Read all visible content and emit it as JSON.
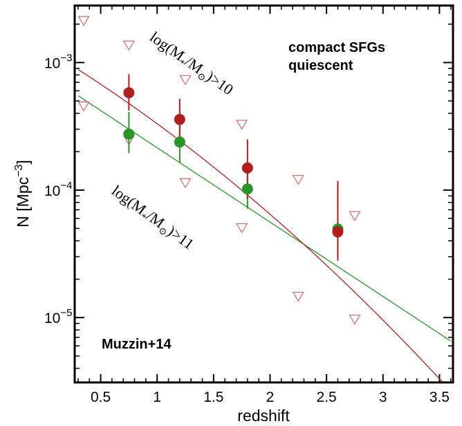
{
  "chart_data": {
    "type": "scatter",
    "xlabel": "redshift",
    "ylabel": "N [Mpc",
    "ylabel_exponent": "−3",
    "ylabel_close": "]",
    "xlim": [
      0.27,
      3.62
    ],
    "ylim": [
      3.1e-06,
      0.0028
    ],
    "yscale": "log",
    "x_ticks": [
      0.5,
      1.0,
      1.5,
      2.0,
      2.5,
      3.0,
      3.5
    ],
    "x_tick_labels": [
      "0.5",
      "1",
      "1.5",
      "2",
      "2.5",
      "3",
      "3.5"
    ],
    "y_ticks": [
      1e-05,
      0.0001,
      0.001
    ],
    "y_tick_labels": [
      {
        "mantissa": "10",
        "exponent": "−5"
      },
      {
        "mantissa": "10",
        "exponent": "−4"
      },
      {
        "mantissa": "10",
        "exponent": "−3"
      }
    ],
    "legend_position": "top-right",
    "legend": [
      {
        "label": "compact SFGs",
        "color": "#2a9428"
      },
      {
        "label": "quiescent",
        "color": "#b01e1e"
      }
    ],
    "series": [
      {
        "name": "compact SFGs",
        "color": "#2a9428",
        "points": [
          {
            "x": 0.75,
            "y": 0.000275,
            "ylo": 0.000195,
            "yhi": 0.00041
          },
          {
            "x": 1.2,
            "y": 0.000238,
            "ylo": 0.000165,
            "yhi": 0.000345
          },
          {
            "x": 1.8,
            "y": 0.000102,
            "ylo": 7.15e-05,
            "yhi": 0.000148
          },
          {
            "x": 2.6,
            "y": 4.95e-05,
            "ylo": 3.1e-05,
            "yhi": 0.000108
          }
        ],
        "fit": {
          "slope": -0.583,
          "intercept": -3.085,
          "curvature": 0
        }
      },
      {
        "name": "quiescent",
        "color": "#b01e1e",
        "points": [
          {
            "x": 0.75,
            "y": 0.00058,
            "ylo": 0.00042,
            "yhi": 0.00081
          },
          {
            "x": 1.2,
            "y": 0.000358,
            "ylo": 0.00024,
            "yhi": 0.00052
          },
          {
            "x": 1.8,
            "y": 0.000149,
            "ylo": 8.5e-05,
            "yhi": 0.00025
          },
          {
            "x": 2.6,
            "y": 4.7e-05,
            "ylo": 2.8e-05,
            "yhi": 0.000118
          }
        ],
        "fit": {
          "slope": -0.53,
          "intercept": -2.89,
          "curvature": -0.06
        }
      }
    ],
    "reference": {
      "label": "Muzzin+14",
      "color": "#d46a6a",
      "marker": "open-triangle-down",
      "points": [
        {
          "x": 0.35,
          "y": 0.00215
        },
        {
          "x": 0.35,
          "y": 0.00046
        },
        {
          "x": 0.75,
          "y": 0.00138
        },
        {
          "x": 0.75,
          "y": 0.00025
        },
        {
          "x": 1.25,
          "y": 0.00074
        },
        {
          "x": 1.25,
          "y": 0.000115
        },
        {
          "x": 1.75,
          "y": 0.00033
        },
        {
          "x": 1.75,
          "y": 5.1e-05
        },
        {
          "x": 2.25,
          "y": 0.000122
        },
        {
          "x": 2.25,
          "y": 1.48e-05
        },
        {
          "x": 2.75,
          "y": 6.35e-05
        },
        {
          "x": 2.75,
          "y": 9.8e-06
        }
      ]
    },
    "annotations": [
      {
        "id": "mass10",
        "text_before": "log(M",
        "sub1": "*",
        "text_mid": "/M",
        "sub2": "⊙",
        "text_after": ")>10",
        "color": "#d46a6a"
      },
      {
        "id": "mass11",
        "text_before": "log(M",
        "sub1": "*",
        "text_mid": "/M",
        "sub2": "⊙",
        "text_after": ")>11",
        "color": "#d46a6a"
      }
    ]
  }
}
